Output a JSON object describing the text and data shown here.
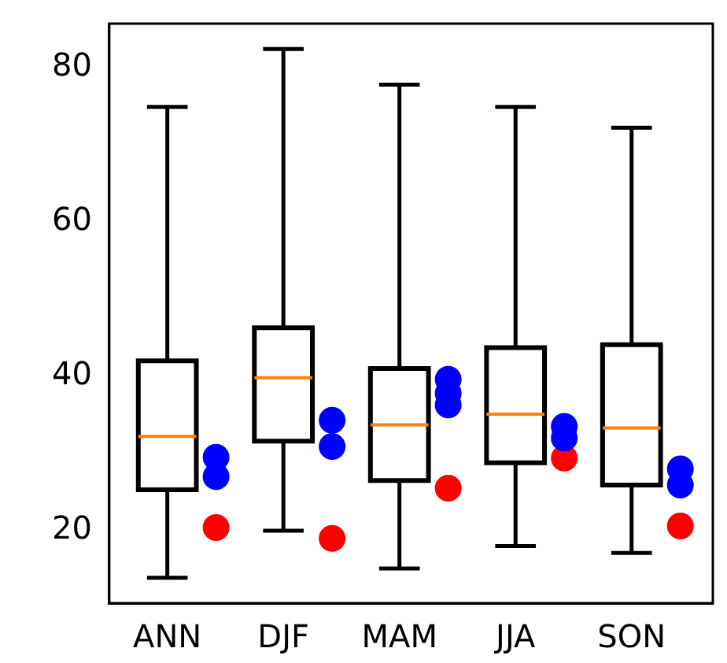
{
  "chart_data": {
    "type": "box",
    "categories": [
      "ANN",
      "DJF",
      "MAM",
      "JJA",
      "SON"
    ],
    "ylim": [
      10.6,
      85.7
    ],
    "yticks": [
      20,
      40,
      60,
      80
    ],
    "grid": false,
    "legend": false,
    "marker": "circle",
    "series": [
      {
        "type": "box",
        "color": "#000000",
        "boxes": [
          {
            "low": 13.9,
            "q1": 25.3,
            "median": 32.2,
            "q3": 42.0,
            "high": 74.9
          },
          {
            "low": 20.0,
            "q1": 31.6,
            "median": 39.8,
            "q3": 46.3,
            "high": 82.4
          },
          {
            "low": 15.1,
            "q1": 26.5,
            "median": 33.7,
            "q3": 41.0,
            "high": 77.8
          },
          {
            "low": 18.0,
            "q1": 28.8,
            "median": 35.1,
            "q3": 43.7,
            "high": 74.9
          },
          {
            "low": 17.1,
            "q1": 25.9,
            "median": 33.3,
            "q3": 44.1,
            "high": 72.2
          }
        ]
      },
      {
        "type": "scatter",
        "color": "#0000ff",
        "x": [
          "ANN",
          "ANN",
          "DJF",
          "DJF",
          "MAM",
          "MAM",
          "MAM",
          "JJA",
          "JJA",
          "SON",
          "SON"
        ],
        "values": [
          29.5,
          27.0,
          34.3,
          30.9,
          39.6,
          37.8,
          36.3,
          33.5,
          32.0,
          28.0,
          25.9
        ]
      },
      {
        "type": "scatter",
        "color": "#ff0000",
        "x": [
          "ANN",
          "DJF",
          "MAM",
          "JJA",
          "SON"
        ],
        "values": [
          20.4,
          19.0,
          25.5,
          29.4,
          20.6
        ]
      }
    ]
  }
}
